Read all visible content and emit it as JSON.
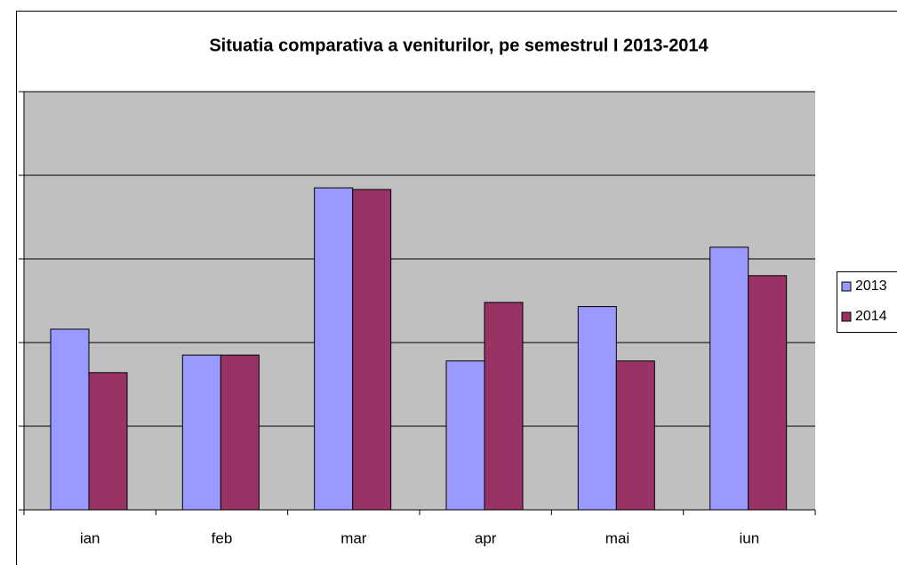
{
  "chart_data": {
    "type": "bar",
    "title": "Situatia comparativa a veniturilor, pe semestrul I 2013-2014",
    "categories": [
      "ian",
      "feb",
      "mar",
      "apr",
      "mai",
      "iun"
    ],
    "series": [
      {
        "name": "2013",
        "color": "#9999ff",
        "values": [
          2.16,
          1.85,
          3.85,
          1.78,
          2.43,
          3.14
        ]
      },
      {
        "name": "2014",
        "color": "#993366",
        "values": [
          1.64,
          1.85,
          3.83,
          2.48,
          1.78,
          2.8
        ]
      }
    ],
    "ylim": [
      0,
      5
    ],
    "yticks": [
      0,
      1,
      2,
      3,
      4,
      5
    ],
    "grid": true,
    "legend": "right"
  }
}
